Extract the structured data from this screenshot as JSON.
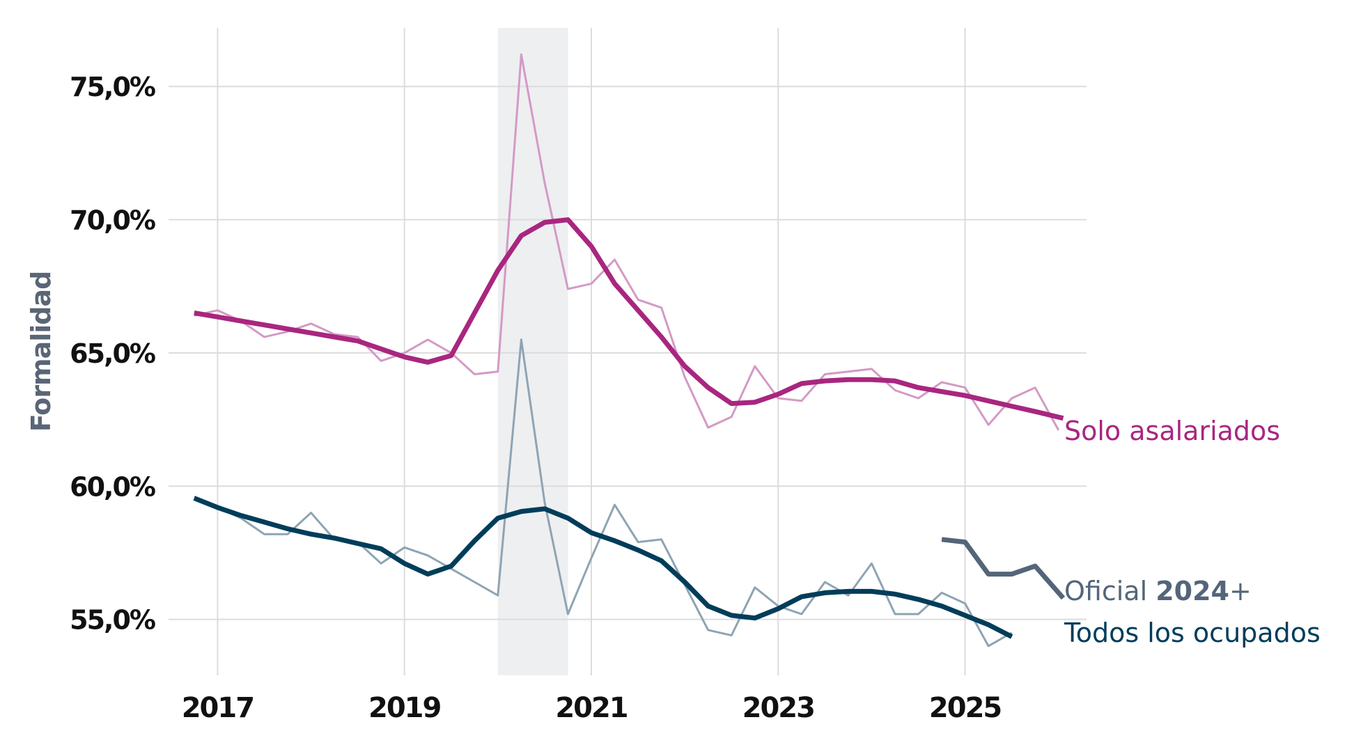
{
  "chart_data": {
    "type": "line",
    "ylabel": "Formalidad",
    "xlabel": "",
    "xlim": [
      2016.55,
      2026.3
    ],
    "ylim": [
      52.9,
      77.2
    ],
    "x_ticks": [
      2017,
      2019,
      2021,
      2023,
      2025
    ],
    "x_tick_labels": [
      "2017",
      "2019",
      "2021",
      "2023",
      "2025"
    ],
    "y_ticks": [
      55,
      60,
      65,
      70,
      75
    ],
    "y_tick_labels": [
      "55,0%",
      "60,0%",
      "65,0%",
      "70,0%",
      "75,0%"
    ],
    "grid": true,
    "shaded_region": {
      "x_start": 2020.0,
      "x_end": 2020.75,
      "color": "#eeeff1"
    },
    "colors": {
      "asalariados": "#a8267f",
      "asalariados_raw": "#d39ac5",
      "ocupados": "#003d5a",
      "ocupados_raw": "#8ea4b3",
      "oficial": "#54657a",
      "grid": "#dcdcdc",
      "shade": "#eeeff1"
    },
    "series": [
      {
        "name": "Solo asalariados",
        "kind": "raw",
        "color": "#d39ac5",
        "points": [
          [
            2016.75,
            66.4
          ],
          [
            2017.0,
            66.6
          ],
          [
            2017.25,
            66.2
          ],
          [
            2017.5,
            65.6
          ],
          [
            2017.75,
            65.8
          ],
          [
            2018.0,
            66.1
          ],
          [
            2018.25,
            65.7
          ],
          [
            2018.5,
            65.6
          ],
          [
            2018.75,
            64.7
          ],
          [
            2019.0,
            65.0
          ],
          [
            2019.25,
            65.5
          ],
          [
            2019.5,
            65.0
          ],
          [
            2019.75,
            64.2
          ],
          [
            2020.0,
            64.3
          ],
          [
            2020.25,
            76.2
          ],
          [
            2020.5,
            71.4
          ],
          [
            2020.75,
            67.4
          ],
          [
            2021.0,
            67.6
          ],
          [
            2021.25,
            68.5
          ],
          [
            2021.5,
            67.0
          ],
          [
            2021.75,
            66.7
          ],
          [
            2022.0,
            64.1
          ],
          [
            2022.25,
            62.2
          ],
          [
            2022.5,
            62.6
          ],
          [
            2022.75,
            64.5
          ],
          [
            2023.0,
            63.3
          ],
          [
            2023.25,
            63.2
          ],
          [
            2023.5,
            64.2
          ],
          [
            2023.75,
            64.3
          ],
          [
            2024.0,
            64.4
          ],
          [
            2024.25,
            63.6
          ],
          [
            2024.5,
            63.3
          ],
          [
            2024.75,
            63.9
          ],
          [
            2025.0,
            63.7
          ],
          [
            2025.25,
            62.3
          ],
          [
            2025.5,
            63.3
          ],
          [
            2025.75,
            63.7
          ],
          [
            2026.0,
            62.1
          ]
        ]
      },
      {
        "name": "Solo asalariados",
        "kind": "trend",
        "color": "#a8267f",
        "points": [
          [
            2016.75,
            66.5
          ],
          [
            2017.0,
            66.35
          ],
          [
            2017.25,
            66.2
          ],
          [
            2017.5,
            66.05
          ],
          [
            2017.75,
            65.9
          ],
          [
            2018.0,
            65.75
          ],
          [
            2018.25,
            65.6
          ],
          [
            2018.5,
            65.45
          ],
          [
            2018.75,
            65.15
          ],
          [
            2019.0,
            64.85
          ],
          [
            2019.25,
            64.65
          ],
          [
            2019.5,
            64.9
          ],
          [
            2019.75,
            66.5
          ],
          [
            2020.0,
            68.1
          ],
          [
            2020.25,
            69.4
          ],
          [
            2020.5,
            69.9
          ],
          [
            2020.75,
            70.0
          ],
          [
            2021.0,
            69.0
          ],
          [
            2021.25,
            67.6
          ],
          [
            2021.5,
            66.6
          ],
          [
            2021.75,
            65.6
          ],
          [
            2022.0,
            64.5
          ],
          [
            2022.25,
            63.7
          ],
          [
            2022.5,
            63.1
          ],
          [
            2022.75,
            63.15
          ],
          [
            2023.0,
            63.45
          ],
          [
            2023.25,
            63.85
          ],
          [
            2023.5,
            63.95
          ],
          [
            2023.75,
            64.0
          ],
          [
            2024.0,
            64.0
          ],
          [
            2024.25,
            63.95
          ],
          [
            2024.5,
            63.7
          ],
          [
            2024.75,
            63.55
          ],
          [
            2025.0,
            63.4
          ],
          [
            2025.25,
            63.2
          ],
          [
            2025.5,
            63.0
          ],
          [
            2025.75,
            62.8
          ],
          [
            2026.05,
            62.55
          ]
        ]
      },
      {
        "name": "Todos los ocupados",
        "kind": "raw",
        "color": "#8ea4b3",
        "points": [
          [
            2016.75,
            59.6
          ],
          [
            2017.0,
            59.2
          ],
          [
            2017.25,
            58.8
          ],
          [
            2017.5,
            58.2
          ],
          [
            2017.75,
            58.2
          ],
          [
            2018.0,
            59.0
          ],
          [
            2018.25,
            58.0
          ],
          [
            2018.5,
            57.9
          ],
          [
            2018.75,
            57.1
          ],
          [
            2019.0,
            57.7
          ],
          [
            2019.25,
            57.4
          ],
          [
            2019.5,
            56.9
          ],
          [
            2019.75,
            56.4
          ],
          [
            2020.0,
            55.9
          ],
          [
            2020.25,
            65.5
          ],
          [
            2020.5,
            59.4
          ],
          [
            2020.75,
            55.2
          ],
          [
            2021.0,
            57.3
          ],
          [
            2021.25,
            59.3
          ],
          [
            2021.5,
            57.9
          ],
          [
            2021.75,
            58.0
          ],
          [
            2022.0,
            56.3
          ],
          [
            2022.25,
            54.6
          ],
          [
            2022.5,
            54.4
          ],
          [
            2022.75,
            56.2
          ],
          [
            2023.0,
            55.5
          ],
          [
            2023.25,
            55.2
          ],
          [
            2023.5,
            56.4
          ],
          [
            2023.75,
            55.9
          ],
          [
            2024.0,
            57.1
          ],
          [
            2024.25,
            55.2
          ],
          [
            2024.5,
            55.2
          ],
          [
            2024.75,
            56.0
          ],
          [
            2025.0,
            55.6
          ],
          [
            2025.25,
            54.0
          ],
          [
            2025.5,
            54.5
          ]
        ]
      },
      {
        "name": "Todos los ocupados",
        "kind": "trend",
        "color": "#003d5a",
        "points": [
          [
            2016.75,
            59.55
          ],
          [
            2017.0,
            59.2
          ],
          [
            2017.25,
            58.9
          ],
          [
            2017.5,
            58.65
          ],
          [
            2017.75,
            58.4
          ],
          [
            2018.0,
            58.2
          ],
          [
            2018.25,
            58.05
          ],
          [
            2018.5,
            57.85
          ],
          [
            2018.75,
            57.65
          ],
          [
            2019.0,
            57.1
          ],
          [
            2019.25,
            56.7
          ],
          [
            2019.5,
            57.0
          ],
          [
            2019.75,
            57.95
          ],
          [
            2020.0,
            58.8
          ],
          [
            2020.25,
            59.05
          ],
          [
            2020.5,
            59.15
          ],
          [
            2020.75,
            58.8
          ],
          [
            2021.0,
            58.25
          ],
          [
            2021.25,
            57.95
          ],
          [
            2021.5,
            57.6
          ],
          [
            2021.75,
            57.2
          ],
          [
            2022.0,
            56.4
          ],
          [
            2022.25,
            55.5
          ],
          [
            2022.5,
            55.15
          ],
          [
            2022.75,
            55.05
          ],
          [
            2023.0,
            55.4
          ],
          [
            2023.25,
            55.85
          ],
          [
            2023.5,
            56.0
          ],
          [
            2023.75,
            56.05
          ],
          [
            2024.0,
            56.05
          ],
          [
            2024.25,
            55.95
          ],
          [
            2024.5,
            55.75
          ],
          [
            2024.75,
            55.5
          ],
          [
            2025.0,
            55.15
          ],
          [
            2025.25,
            54.8
          ],
          [
            2025.5,
            54.35
          ]
        ]
      },
      {
        "name": "Oficial 2024+",
        "kind": "official",
        "color": "#54657a",
        "points": [
          [
            2024.75,
            58.0
          ],
          [
            2025.0,
            57.9
          ],
          [
            2025.25,
            56.7
          ],
          [
            2025.5,
            56.7
          ],
          [
            2025.75,
            57.0
          ],
          [
            2026.05,
            55.8
          ]
        ]
      }
    ],
    "annotations": {
      "asalariados": "Solo asalariados",
      "oficial_prefix": "Oficial ",
      "oficial_bold": "2024",
      "oficial_suffix": "+",
      "ocupados": "Todos los ocupados"
    }
  }
}
